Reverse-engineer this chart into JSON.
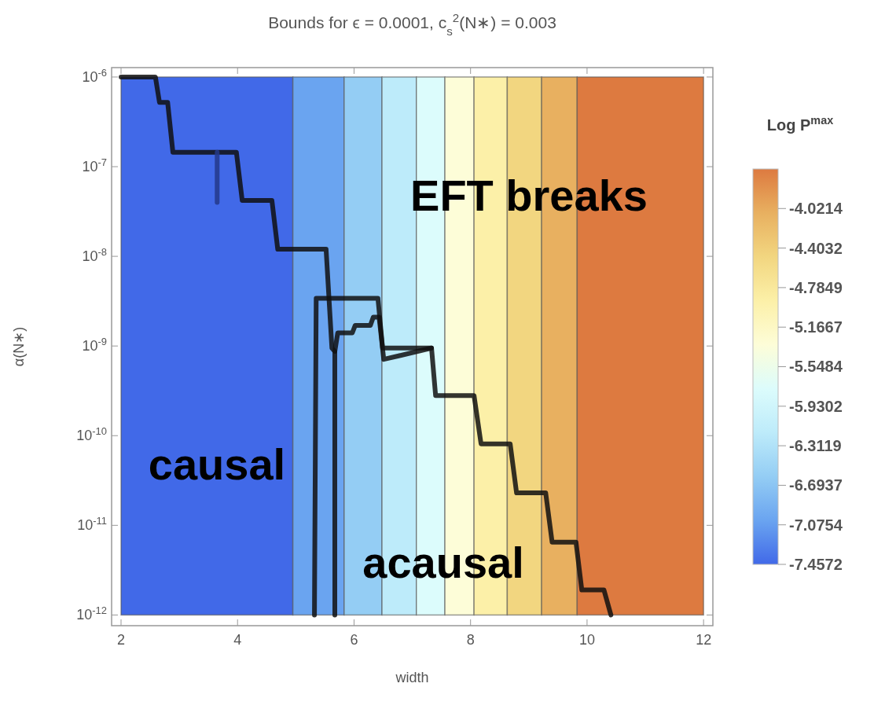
{
  "chart_data": {
    "type": "line",
    "title": "Bounds for ϵ = 0.0001, c$_{s}$$^{2}$(N∗) = 0.003",
    "xlabel": "width",
    "ylabel": "α(N∗)",
    "clabel": "Log P$^{max}$",
    "log": "y",
    "grid": false,
    "marker": "none",
    "line_style": "solid",
    "xlim": [
      1.838,
      12.16
    ],
    "xticks": [
      2,
      4,
      6,
      8,
      10,
      12
    ],
    "ylim": [
      7.6e-13,
      1.273e-06
    ],
    "yticks": [
      {
        "value": 1e-12,
        "label": "10$^{-12}$"
      },
      {
        "value": 1e-11,
        "label": "10$^{-11}$"
      },
      {
        "value": 1e-10,
        "label": "10$^{-10}$"
      },
      {
        "value": 1e-09,
        "label": "10$^{-9}$"
      },
      {
        "value": 1e-08,
        "label": "10$^{-8}$"
      },
      {
        "value": 1e-07,
        "label": "10$^{-7}$"
      },
      {
        "value": 1e-06,
        "label": "10$^{-6}$"
      }
    ],
    "clim": [
      -7.4572,
      -3.6397
    ],
    "cticks": [
      -4.0214,
      -4.4032,
      -4.7849,
      -5.1667,
      -5.5484,
      -5.9302,
      -6.3119,
      -6.6937,
      -7.0754,
      -7.4572
    ],
    "bands": [
      {
        "axis": "x",
        "from": 2,
        "to": 4.95,
        "color": "#4169e8"
      },
      {
        "axis": "x",
        "from": 4.95,
        "to": 5.83,
        "color": "#6aa4f0"
      },
      {
        "axis": "x",
        "from": 5.83,
        "to": 6.48,
        "color": "#94cdf4"
      },
      {
        "axis": "x",
        "from": 6.48,
        "to": 7.07,
        "color": "#bdebfa"
      },
      {
        "axis": "x",
        "from": 7.07,
        "to": 7.56,
        "color": "#dcfcfc"
      },
      {
        "axis": "x",
        "from": 7.56,
        "to": 8.06,
        "color": "#fdfdd8"
      },
      {
        "axis": "x",
        "from": 8.06,
        "to": 8.63,
        "color": "#fcf0a8"
      },
      {
        "axis": "x",
        "from": 8.63,
        "to": 9.22,
        "color": "#f2d680"
      },
      {
        "axis": "x",
        "from": 9.22,
        "to": 9.83,
        "color": "#e8b060"
      },
      {
        "axis": "x",
        "from": 9.83,
        "to": 12,
        "color": "#dd7a40"
      }
    ],
    "series": [
      {
        "color": "#111111",
        "x": [
          2,
          2.59,
          2.66,
          2.8,
          2.89,
          3.98,
          4.08,
          4.59,
          4.69,
          5.52,
          5.62,
          5.67,
          5.67
        ],
        "values": [
          1e-06,
          1e-06,
          5.2e-07,
          5.2e-07,
          1.45e-07,
          1.45e-07,
          4.2e-08,
          4.2e-08,
          1.2e-08,
          1.2e-08,
          9.5e-10,
          8.7e-10,
          1e-12
        ]
      },
      {
        "color": "#111111",
        "x": [
          5.32,
          5.35,
          6.41,
          6.49,
          7.33,
          7.4,
          8.06,
          8.18,
          8.68,
          8.79,
          9.29,
          9.4,
          9.81,
          9.91,
          10.29,
          10.41
        ],
        "values": [
          1e-12,
          3.4e-09,
          3.4e-09,
          9.5e-10,
          9.5e-10,
          2.8e-10,
          2.8e-10,
          8.1e-11,
          8.1e-11,
          2.3e-11,
          2.3e-11,
          6.5e-12,
          6.5e-12,
          1.9e-12,
          1.9e-12,
          1e-12
        ]
      },
      {
        "color": "#111111",
        "x": [
          5.67,
          5.72,
          5.97,
          6.02,
          6.28,
          6.33,
          6.43,
          6.51,
          6.78,
          7.33
        ],
        "values": [
          8.7e-10,
          1.4e-09,
          1.4e-09,
          1.7e-09,
          1.7e-09,
          2.1e-09,
          2.1e-09,
          7.1e-10,
          7.8e-10,
          9.5e-10
        ]
      },
      {
        "color": "#25398a",
        "x": [
          3.65,
          3.65
        ],
        "values": [
          1.45e-07,
          4e-08
        ]
      }
    ],
    "annotations": [
      "EFT breaks",
      "causal",
      "acausal"
    ]
  }
}
